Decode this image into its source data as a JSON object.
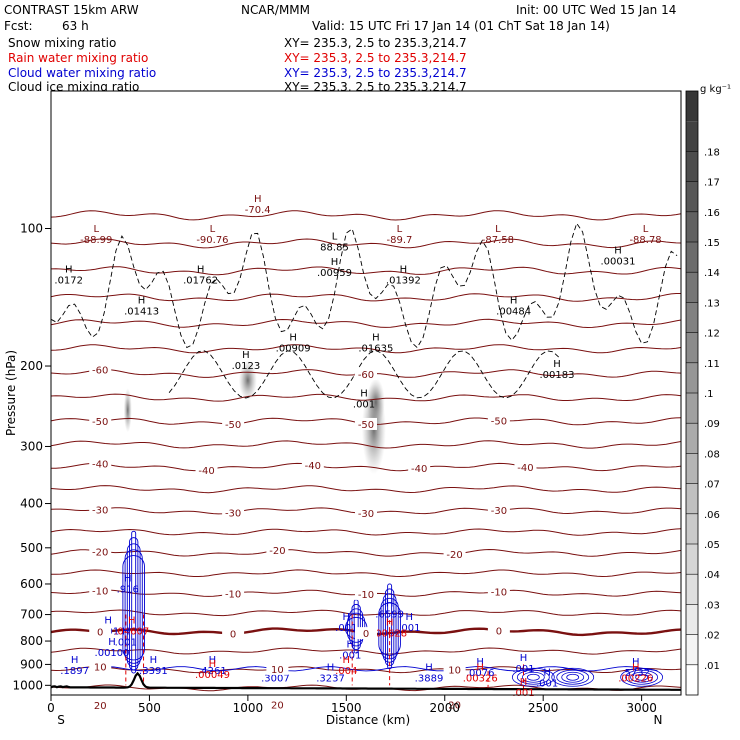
{
  "header": {
    "model": "CONTRAST 15km ARW",
    "org": "NCAR/MMM",
    "init": "Init: 00 UTC Wed 15 Jan 14",
    "fcst_label": "Fcst:",
    "fcst_value": "63 h",
    "valid": "Valid: 15 UTC Fri 17 Jan 14 (01 ChT Sat 18 Jan 14)"
  },
  "fields": [
    {
      "name": "Snow mixing ratio",
      "xy": "XY= 235.3,  2.5 to 235.3,214.7",
      "color": "#000000"
    },
    {
      "name": "Rain water mixing ratio",
      "xy": "XY= 235.3,  2.5 to 235.3,214.7",
      "color": "#e00000"
    },
    {
      "name": "Cloud water mixing ratio",
      "xy": "XY= 235.3,  2.5 to 235.3,214.7",
      "color": "#0000d0"
    },
    {
      "name": "Cloud ice mixing ratio",
      "xy": "XY= 235.3,  2.5 to 235.3,214.7",
      "color": "#000000"
    }
  ],
  "chart_data": {
    "type": "heatmap",
    "xlabel": "Distance (km)",
    "ylabel": "Pressure (hPa)",
    "xlim": [
      0,
      3200
    ],
    "ylim": [
      1050,
      50
    ],
    "y_scale": "log",
    "xticks": [
      0,
      500,
      1000,
      1500,
      2000,
      2500,
      3000
    ],
    "yticks": [
      100,
      200,
      300,
      400,
      500,
      600,
      700,
      800,
      900,
      1000
    ],
    "end_labels": {
      "left": "S",
      "right": "N"
    },
    "colorbar": {
      "units": "g kg⁻¹",
      "labels": [
        ".01",
        ".02",
        ".03",
        ".04",
        ".05",
        ".06",
        ".07",
        ".08",
        ".09",
        ".1",
        ".11",
        ".12",
        ".13",
        ".14",
        ".15",
        ".16",
        ".17",
        ".18"
      ]
    },
    "isotherms": [
      {
        "t": -60,
        "labels": [
          "-60",
          "-60"
        ]
      },
      {
        "t": -50,
        "labels": [
          "-50",
          "-50",
          "-50",
          "-50"
        ]
      },
      {
        "t": -40,
        "labels": [
          "-40",
          "-40",
          "-40",
          "-40",
          "-40"
        ]
      },
      {
        "t": -30,
        "labels": [
          "-30",
          "-30",
          "-30",
          "-30"
        ]
      },
      {
        "t": -20,
        "labels": [
          "-20",
          "-20",
          "-20"
        ]
      },
      {
        "t": -10,
        "labels": [
          "-10",
          "-10",
          "-10",
          "-10"
        ]
      },
      {
        "t": 0,
        "labels": [
          "0",
          "0",
          "0",
          "0"
        ]
      },
      {
        "t": 10,
        "labels": [
          "10",
          "10",
          "10"
        ]
      },
      {
        "t": 20,
        "labels": [
          "20",
          "20",
          "20"
        ]
      }
    ],
    "extrema_labels": [
      {
        "kind": "L",
        "value": "-88.99",
        "x": 230,
        "p": 106,
        "color": "#7a1010"
      },
      {
        "kind": "L",
        "value": "-90.76",
        "x": 820,
        "p": 106,
        "color": "#7a1010"
      },
      {
        "kind": "H",
        "value": "-70.4",
        "x": 1050,
        "p": 91,
        "color": "#7a1010"
      },
      {
        "kind": "L",
        "value": "88.85",
        "x": 1440,
        "p": 110,
        "color": "#000000"
      },
      {
        "kind": "L",
        "value": "-89.7",
        "x": 1770,
        "p": 106,
        "color": "#7a1010"
      },
      {
        "kind": "L",
        "value": "-87.58",
        "x": 2270,
        "p": 106,
        "color": "#7a1010"
      },
      {
        "kind": "L",
        "value": "-88.78",
        "x": 3020,
        "p": 106,
        "color": "#7a1010"
      },
      {
        "kind": "H",
        "value": ".0172",
        "x": 90,
        "p": 130,
        "color": "#000000"
      },
      {
        "kind": "H",
        "value": ".01413",
        "x": 460,
        "p": 152,
        "color": "#000000"
      },
      {
        "kind": "H",
        "value": ".01762",
        "x": 760,
        "p": 130,
        "color": "#000000"
      },
      {
        "kind": "H",
        "value": ".00959",
        "x": 1440,
        "p": 125,
        "color": "#000000"
      },
      {
        "kind": "H",
        "value": ".01392",
        "x": 1790,
        "p": 130,
        "color": "#000000"
      },
      {
        "kind": "H",
        "value": ".00031",
        "x": 2880,
        "p": 118,
        "color": "#000000"
      },
      {
        "kind": "H",
        "value": ".00484",
        "x": 2350,
        "p": 152,
        "color": "#000000"
      },
      {
        "kind": "H",
        "value": ".0123",
        "x": 990,
        "p": 200,
        "color": "#000000"
      },
      {
        "kind": "H",
        "value": ".00909",
        "x": 1230,
        "p": 183,
        "color": "#000000"
      },
      {
        "kind": "H",
        "value": ".01635",
        "x": 1650,
        "p": 183,
        "color": "#000000"
      },
      {
        "kind": "H",
        "value": ".00183",
        "x": 2570,
        "p": 209,
        "color": "#000000"
      },
      {
        "kind": "H",
        "value": ".001",
        "x": 1590,
        "p": 243,
        "color": "#000000"
      },
      {
        "kind": "H",
        "value": ".916",
        "x": 390,
        "p": 617,
        "color": "#0000d0"
      },
      {
        "kind": "H",
        "value": ".001",
        "x": 290,
        "p": 762,
        "color": "#0000d0"
      },
      {
        "kind": "H",
        "value": ".04607",
        "x": 410,
        "p": 762,
        "color": "#e00000"
      },
      {
        "kind": "H",
        "value": ".001",
        "x": 380,
        "p": 805,
        "color": "#0000d0"
      },
      {
        "kind": "H",
        "value": ".00100",
        "x": 310,
        "p": 850,
        "color": "#0000d0"
      },
      {
        "kind": "H",
        "value": ".001",
        "x": 1500,
        "p": 750,
        "color": "#0000d0"
      },
      {
        "kind": "H",
        "value": ".6599",
        "x": 1720,
        "p": 700,
        "color": "#0000d0"
      },
      {
        "kind": "H",
        "value": ".001",
        "x": 1820,
        "p": 750,
        "color": "#0000d0"
      },
      {
        "kind": "H",
        "value": ".00628",
        "x": 1720,
        "p": 770,
        "color": "#e00000"
      },
      {
        "kind": "H",
        "value": ".001",
        "x": 1520,
        "p": 860,
        "color": "#0000d0"
      },
      {
        "kind": "H",
        "value": ".1897",
        "x": 120,
        "p": 930,
        "color": "#0000d0"
      },
      {
        "kind": "H",
        "value": ".3391",
        "x": 520,
        "p": 930,
        "color": "#0000d0"
      },
      {
        "kind": "H",
        "value": ".4261",
        "x": 820,
        "p": 930,
        "color": "#0000d0"
      },
      {
        "kind": "H",
        "value": ".00049",
        "x": 820,
        "p": 950,
        "color": "#e00000"
      },
      {
        "kind": "H",
        "value": ".3007",
        "x": 1140,
        "p": 965,
        "color": "#0000d0"
      },
      {
        "kind": "H",
        "value": ".3237",
        "x": 1420,
        "p": 965,
        "color": "#0000d0"
      },
      {
        "kind": "H",
        "value": ".004",
        "x": 1500,
        "p": 930,
        "color": "#e00000"
      },
      {
        "kind": "H",
        "value": ".3889",
        "x": 1920,
        "p": 965,
        "color": "#0000d0"
      },
      {
        "kind": "H",
        "value": ".0076",
        "x": 2180,
        "p": 940,
        "color": "#0000d0"
      },
      {
        "kind": "H",
        "value": ".00326",
        "x": 2180,
        "p": 965,
        "color": "#e00000"
      },
      {
        "kind": "H",
        "value": ".001",
        "x": 2400,
        "p": 920,
        "color": "#0000d0"
      },
      {
        "kind": "H",
        "value": ".001",
        "x": 2520,
        "p": 990,
        "color": "#0000d0"
      },
      {
        "kind": "H",
        "value": ".001",
        "x": 2400,
        "p": 1040,
        "color": "#e00000"
      },
      {
        "kind": "H",
        "value": ".5732",
        "x": 2970,
        "p": 940,
        "color": "#0000d0"
      },
      {
        "kind": "H",
        "value": ".00226",
        "x": 2970,
        "p": 965,
        "color": "#e00000"
      }
    ]
  }
}
